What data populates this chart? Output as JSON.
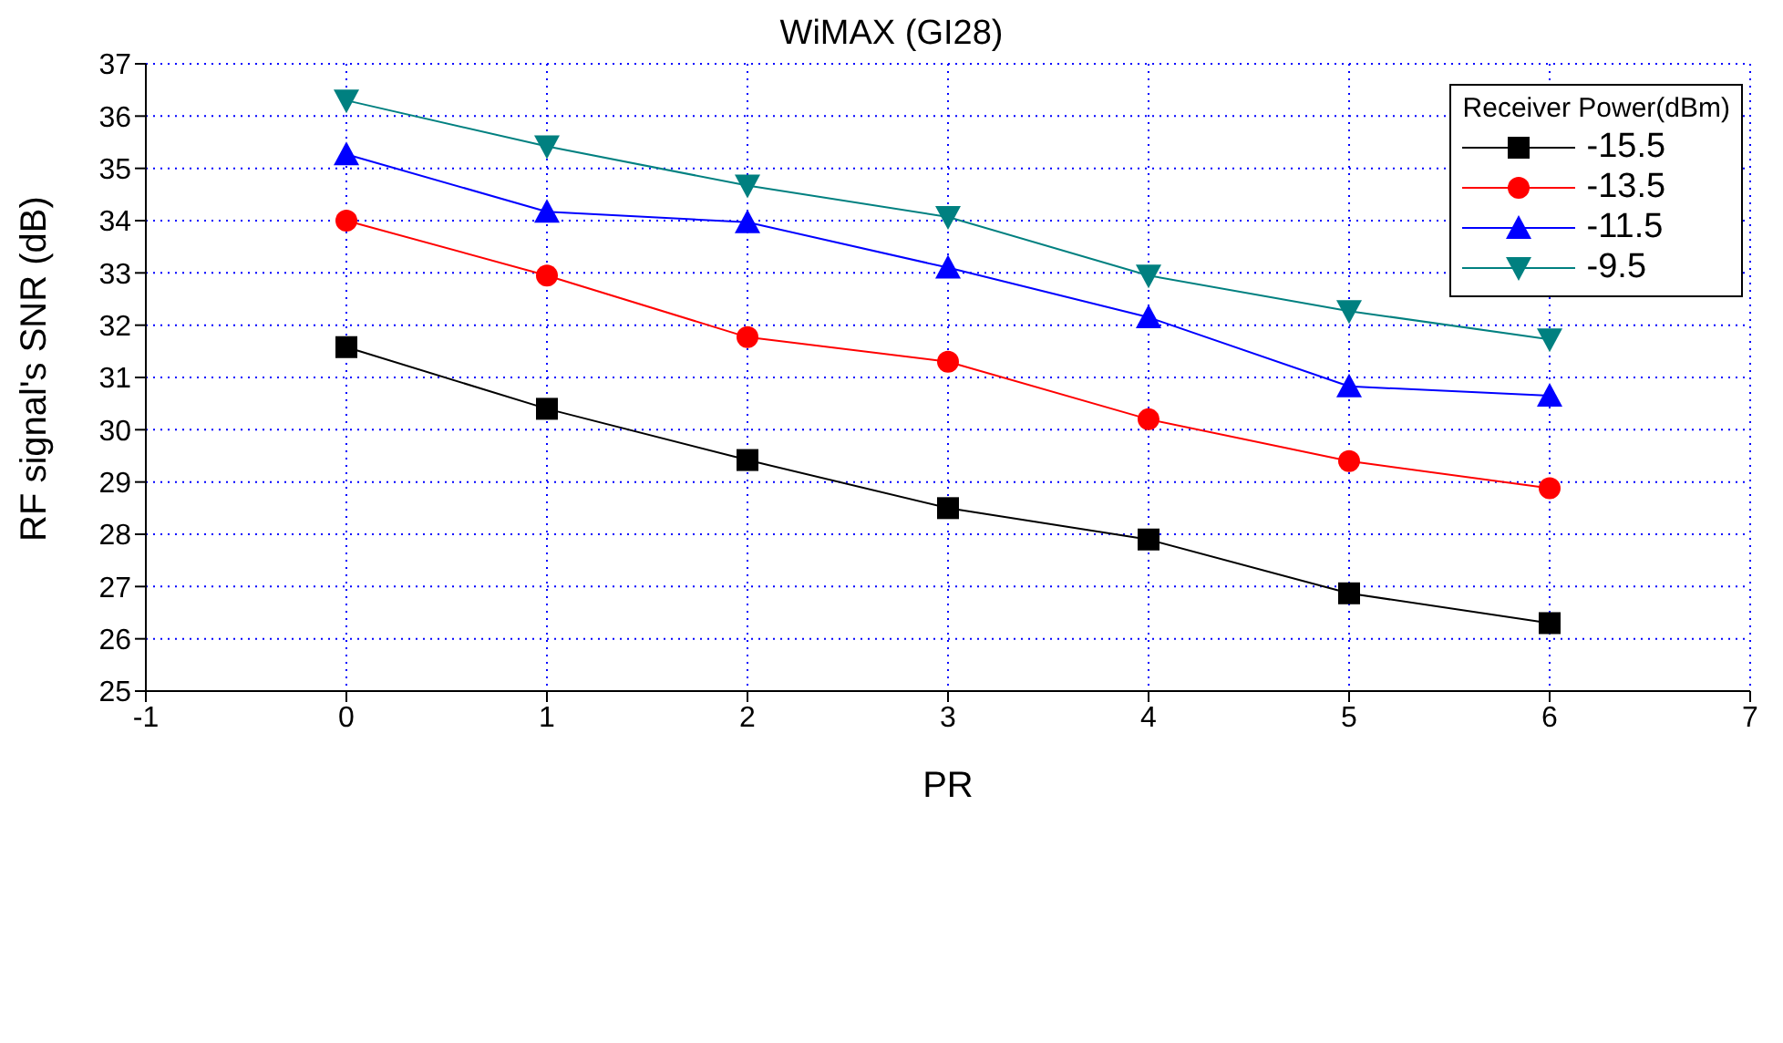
{
  "chart_data": {
    "type": "line",
    "title": "WiMAX (GI28)",
    "xlabel": "PR",
    "ylabel": "RF signal's SNR (dB)",
    "legend_title": "Receiver Power(dBm)",
    "x": [
      0,
      1,
      2,
      3,
      4,
      5,
      6
    ],
    "series": [
      {
        "name": "-15.5",
        "color": "#000000",
        "marker": "square",
        "values": [
          31.58,
          30.4,
          29.42,
          28.5,
          27.9,
          26.87,
          26.3
        ]
      },
      {
        "name": "-13.5",
        "color": "#ff0000",
        "marker": "circle",
        "values": [
          34.0,
          32.95,
          31.77,
          31.3,
          30.2,
          29.4,
          28.88
        ]
      },
      {
        "name": "-11.5",
        "color": "#0000ff",
        "marker": "triangle",
        "values": [
          35.27,
          34.17,
          33.97,
          33.1,
          32.15,
          30.83,
          30.65
        ]
      },
      {
        "name": "-9.5",
        "color": "#008080",
        "marker": "triangle-down",
        "values": [
          36.3,
          35.42,
          34.67,
          34.07,
          32.95,
          32.27,
          31.73
        ]
      }
    ],
    "xlim": [
      -1,
      7
    ],
    "xticks": [
      -1,
      0,
      1,
      2,
      3,
      4,
      5,
      6,
      7
    ],
    "ylim": [
      25,
      37
    ],
    "yticks": [
      25,
      26,
      27,
      28,
      29,
      30,
      31,
      32,
      33,
      34,
      35,
      36,
      37
    ],
    "grid": true,
    "legend": "top right"
  }
}
